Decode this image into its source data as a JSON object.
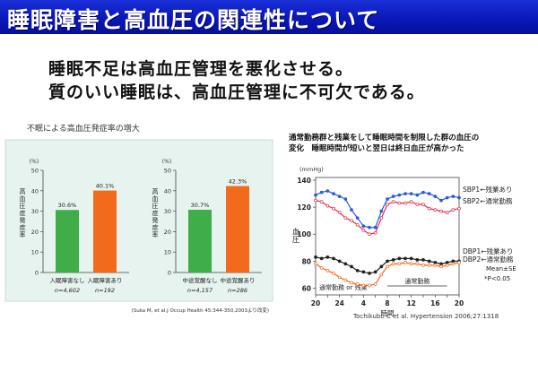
{
  "slide": {
    "title": "睡眠障害と高血圧の関連性について",
    "headlines": [
      "睡眠不足は高血圧管理を悪化させる。",
      "質のいい睡眠は、高血圧管理に不可欠である。"
    ]
  },
  "colors": {
    "banner": "#0a18b8",
    "bar_green": "#3fae49",
    "bar_orange": "#f26a1b",
    "panel_bg": "#e6f3ee",
    "line_blue": "#2a5bd7",
    "line_red": "#e0304a",
    "line_black": "#222222",
    "line_orange": "#e67e22"
  },
  "chart_data": [
    {
      "type": "bar",
      "title": "不眠による高血圧発症率の増大",
      "citation": "(Suka M, et al.J Occup Health 45:344-350,2003より改変)",
      "panels": [
        {
          "ylabel": "高血圧症発症率",
          "yunit": "(%)",
          "ylim": [
            0,
            50
          ],
          "yticks": [
            0,
            10,
            20,
            30,
            40,
            50
          ],
          "bars": [
            {
              "label": "入眠障害なし",
              "n": "n=4,602",
              "value": 30.6,
              "value_label": "30.6%",
              "color": "green"
            },
            {
              "label": "入眠障害あり",
              "n": "n=192",
              "value": 40.1,
              "value_label": "40.1%",
              "color": "orange"
            }
          ]
        },
        {
          "ylabel": "高血圧症発症率",
          "yunit": "(%)",
          "ylim": [
            0,
            50
          ],
          "yticks": [
            0,
            10,
            20,
            30,
            40,
            50
          ],
          "bars": [
            {
              "label": "中途覚醒なし",
              "n": "n=4,157",
              "value": 30.7,
              "value_label": "30.7%",
              "color": "green"
            },
            {
              "label": "中途覚醒あり",
              "n": "n=286",
              "value": 42.3,
              "value_label": "42.3%",
              "color": "orange"
            }
          ]
        }
      ]
    },
    {
      "type": "line",
      "title_lines": [
        "通常勤務群と残業をして睡眠時間を制限した群の血圧の",
        "変化　睡眠時間が短いと翌日は終日血圧が高かった"
      ],
      "ylabel": "血圧",
      "yunit": "(mmHg)",
      "ylim": [
        55,
        142
      ],
      "yticks": [
        60,
        80,
        100,
        120,
        140
      ],
      "xlabel": "時間",
      "xlim": [
        20,
        44
      ],
      "xticks": [
        20,
        22,
        24,
        26,
        28,
        30,
        32,
        34,
        36,
        38,
        40,
        42,
        44
      ],
      "xtick_labels": [
        "20",
        "",
        "24",
        "",
        "4",
        "",
        "8",
        "",
        "12",
        "",
        "16",
        "",
        "20"
      ],
      "period_labels": [
        {
          "text": "通常勤務 or 残業",
          "from": 20,
          "to": 32
        },
        {
          "text": "通常勤務",
          "from": 32,
          "to": 42
        }
      ],
      "annotations": [
        "Mean±SE",
        "*P<0.05"
      ],
      "citation": "Tochikubo C et al. Hypertension 2006;27:1318",
      "x": [
        20,
        21,
        22,
        23,
        24,
        25,
        26,
        27,
        28,
        29,
        30,
        31,
        32,
        33,
        34,
        35,
        36,
        37,
        38,
        39,
        40,
        41,
        42,
        43,
        44
      ],
      "series": [
        {
          "name": "SBP1←残業あり",
          "color": "blue",
          "marker": "filled",
          "values": [
            129,
            131,
            132,
            130,
            128,
            126,
            118,
            112,
            106,
            105,
            105,
            117,
            126,
            128,
            129,
            130,
            130,
            129,
            131,
            130,
            128,
            125,
            127,
            128,
            127
          ]
        },
        {
          "name": "SBP2←通常勤務",
          "color": "red",
          "marker": "open",
          "values": [
            125,
            124,
            121,
            119,
            116,
            112,
            110,
            107,
            103,
            100,
            101,
            112,
            122,
            124,
            123,
            123,
            124,
            122,
            122,
            119,
            118,
            117,
            116,
            118,
            119
          ]
        },
        {
          "name": "DBP1←残業あり",
          "color": "black",
          "marker": "filled",
          "values": [
            83,
            82,
            83,
            82,
            80,
            78,
            76,
            73,
            72,
            71,
            72,
            76,
            80,
            81,
            82,
            82,
            82,
            81,
            81,
            80,
            79,
            78,
            79,
            80,
            80
          ]
        },
        {
          "name": "DBP2←通常勤務",
          "color": "orange",
          "marker": "open",
          "values": [
            78,
            75,
            73,
            71,
            68,
            66,
            64,
            63,
            62,
            62,
            63,
            70,
            76,
            78,
            78,
            79,
            78,
            78,
            77,
            77,
            77,
            76,
            77,
            78,
            79
          ]
        }
      ]
    }
  ]
}
